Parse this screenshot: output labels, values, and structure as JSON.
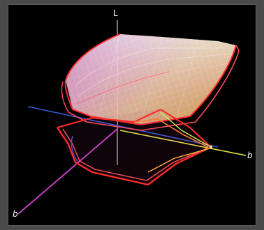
{
  "diagram": {
    "axes": {
      "L": "L",
      "a": "b",
      "b": "b"
    },
    "colors": {
      "background": "#000000",
      "frame": "#4a4a4a",
      "axis_l": "#c8c8c8",
      "axis_a": "#3a5ad8",
      "axis_b": "#e8e84a",
      "axis_neg_a": "#c040c0",
      "gamut_outline": "#ff2a2a",
      "gamut_outline_secondary": "#ff5a6a"
    }
  }
}
